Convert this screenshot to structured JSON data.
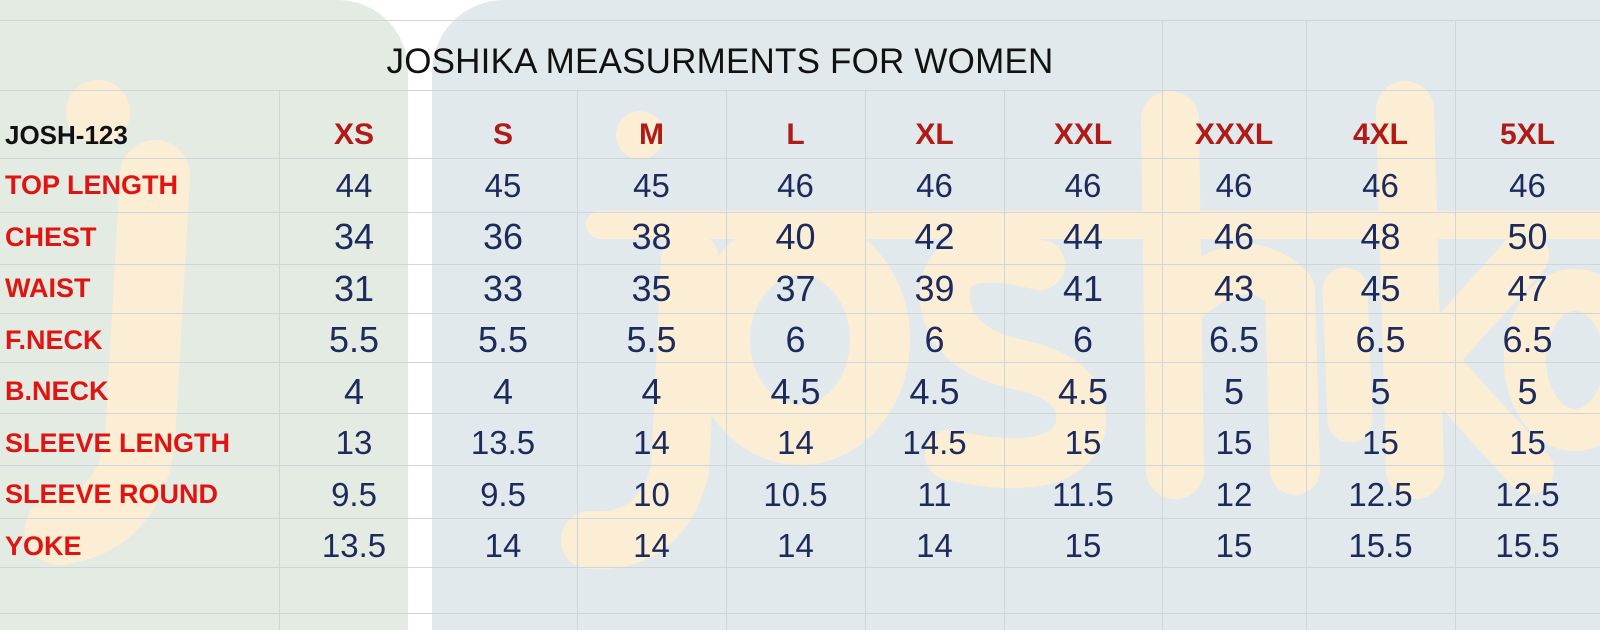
{
  "title": "JOSHIKA MEASURMENTS FOR WOMEN",
  "style_code": "JOSH-123",
  "brand_watermark": "joshika",
  "colors": {
    "size_label": "#b01a17",
    "measure_label": "#e01512",
    "value": "#1d2a5c",
    "watermark": "#fbeed5"
  },
  "sizes": [
    "XS",
    "S",
    "M",
    "L",
    "XL",
    "XXL",
    "XXXL",
    "4XL",
    "5XL"
  ],
  "rows": [
    {
      "label": "TOP LENGTH",
      "values": [
        "44",
        "45",
        "45",
        "46",
        "46",
        "46",
        "46",
        "46",
        "46"
      ]
    },
    {
      "label": "CHEST",
      "values": [
        "34",
        "36",
        "38",
        "40",
        "42",
        "44",
        "46",
        "48",
        "50"
      ]
    },
    {
      "label": "WAIST",
      "values": [
        "31",
        "33",
        "35",
        "37",
        "39",
        "41",
        "43",
        "45",
        "47"
      ]
    },
    {
      "label": "F.NECK",
      "values": [
        "5.5",
        "5.5",
        "5.5",
        "6",
        "6",
        "6",
        "6.5",
        "6.5",
        "6.5"
      ]
    },
    {
      "label": "B.NECK",
      "values": [
        "4",
        "4",
        "4",
        "4.5",
        "4.5",
        "4.5",
        "5",
        "5",
        "5"
      ]
    },
    {
      "label": "SLEEVE LENGTH",
      "values": [
        "13",
        "13.5",
        "14",
        "14",
        "14.5",
        "15",
        "15",
        "15",
        "15"
      ]
    },
    {
      "label": "SLEEVE ROUND",
      "values": [
        "9.5",
        "9.5",
        "10",
        "10.5",
        "11",
        "11.5",
        "12",
        "12.5",
        "12.5"
      ]
    },
    {
      "label": "YOKE",
      "values": [
        "13.5",
        "14",
        "14",
        "14",
        "14",
        "15",
        "15",
        "15.5",
        "15.5"
      ]
    }
  ]
}
